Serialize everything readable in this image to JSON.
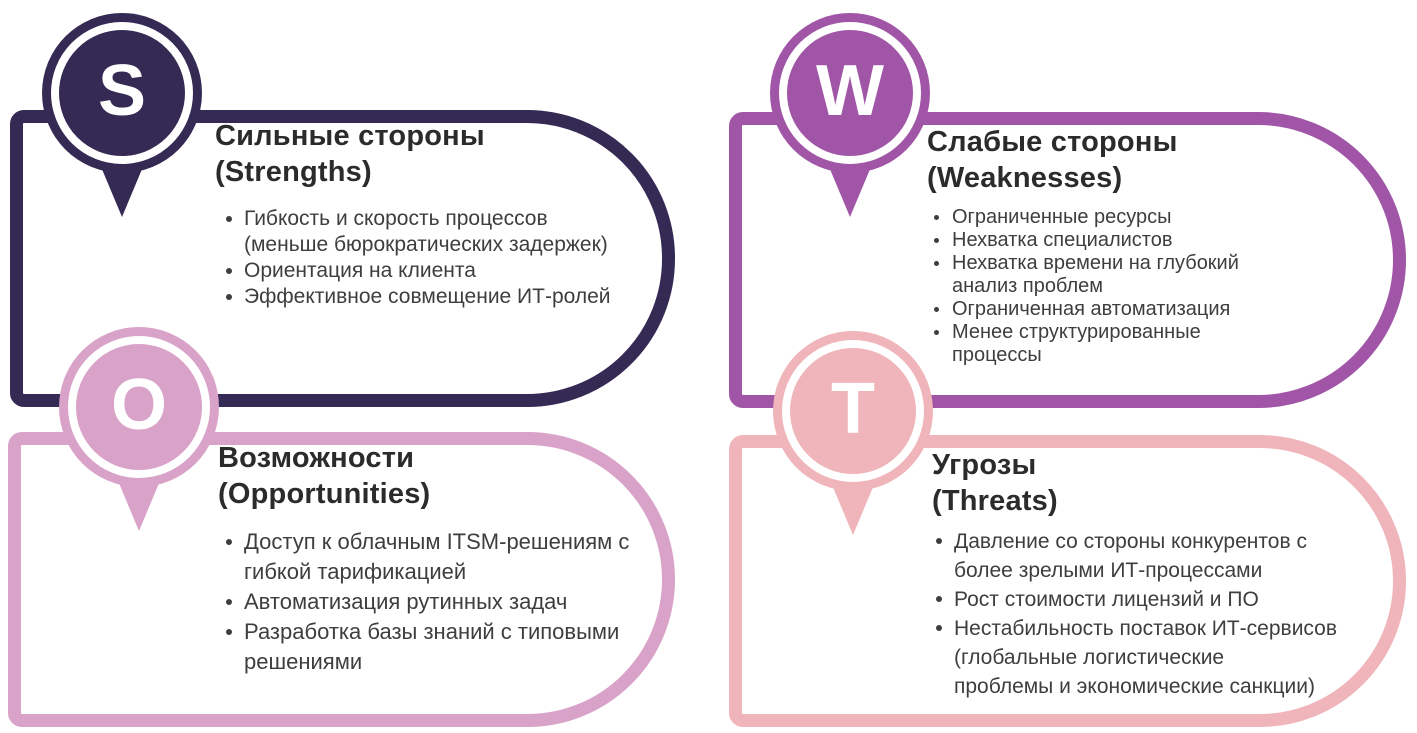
{
  "diagram_type": "SWOT",
  "colors": {
    "strengths": "#342a54",
    "weaknesses": "#a055a6",
    "opportunities": "#d9a2c8",
    "threats": "#f0b5ba",
    "title_text": "#2b2b2b",
    "body_text": "#3e3e3e",
    "background": "#ffffff"
  },
  "quadrants": [
    {
      "letter": "S",
      "name_ru": "Сильные стороны",
      "name_en": "(Strengths)",
      "color": "#342a54",
      "items": [
        "Гибкость и скорость процессов\n(меньше бюрократических задержек)",
        "Ориентация на клиента",
        "Эффективное совмещение ИТ-ролей"
      ]
    },
    {
      "letter": "W",
      "name_ru": "Слабые стороны",
      "name_en": "(Weaknesses)",
      "color": "#a055a6",
      "items": [
        "Ограниченные ресурсы",
        "Нехватка специалистов",
        "Нехватка времени на глубокий\nанализ проблем",
        "Ограниченная автоматизация",
        "Менее структурированные процессы"
      ]
    },
    {
      "letter": "O",
      "name_ru": "Возможности",
      "name_en": "(Opportunities)",
      "color": "#d9a2c8",
      "items": [
        "Доступ к облачным ITSM-решениям с\nгибкой тарификацией",
        "Автоматизация рутинных задач",
        "Разработка базы знаний с типовыми\nрешениями"
      ]
    },
    {
      "letter": "T",
      "name_ru": "Угрозы",
      "name_en": "(Threats)",
      "color": "#f0b5ba",
      "items": [
        "Давление со стороны конкурентов с\nболее зрелыми ИТ-процессами",
        "Рост стоимости лицензий и ПО",
        "Нестабильность поставок ИТ-сервисов\n(глобальные логистические\nпроблемы и экономические санкции)"
      ]
    }
  ]
}
